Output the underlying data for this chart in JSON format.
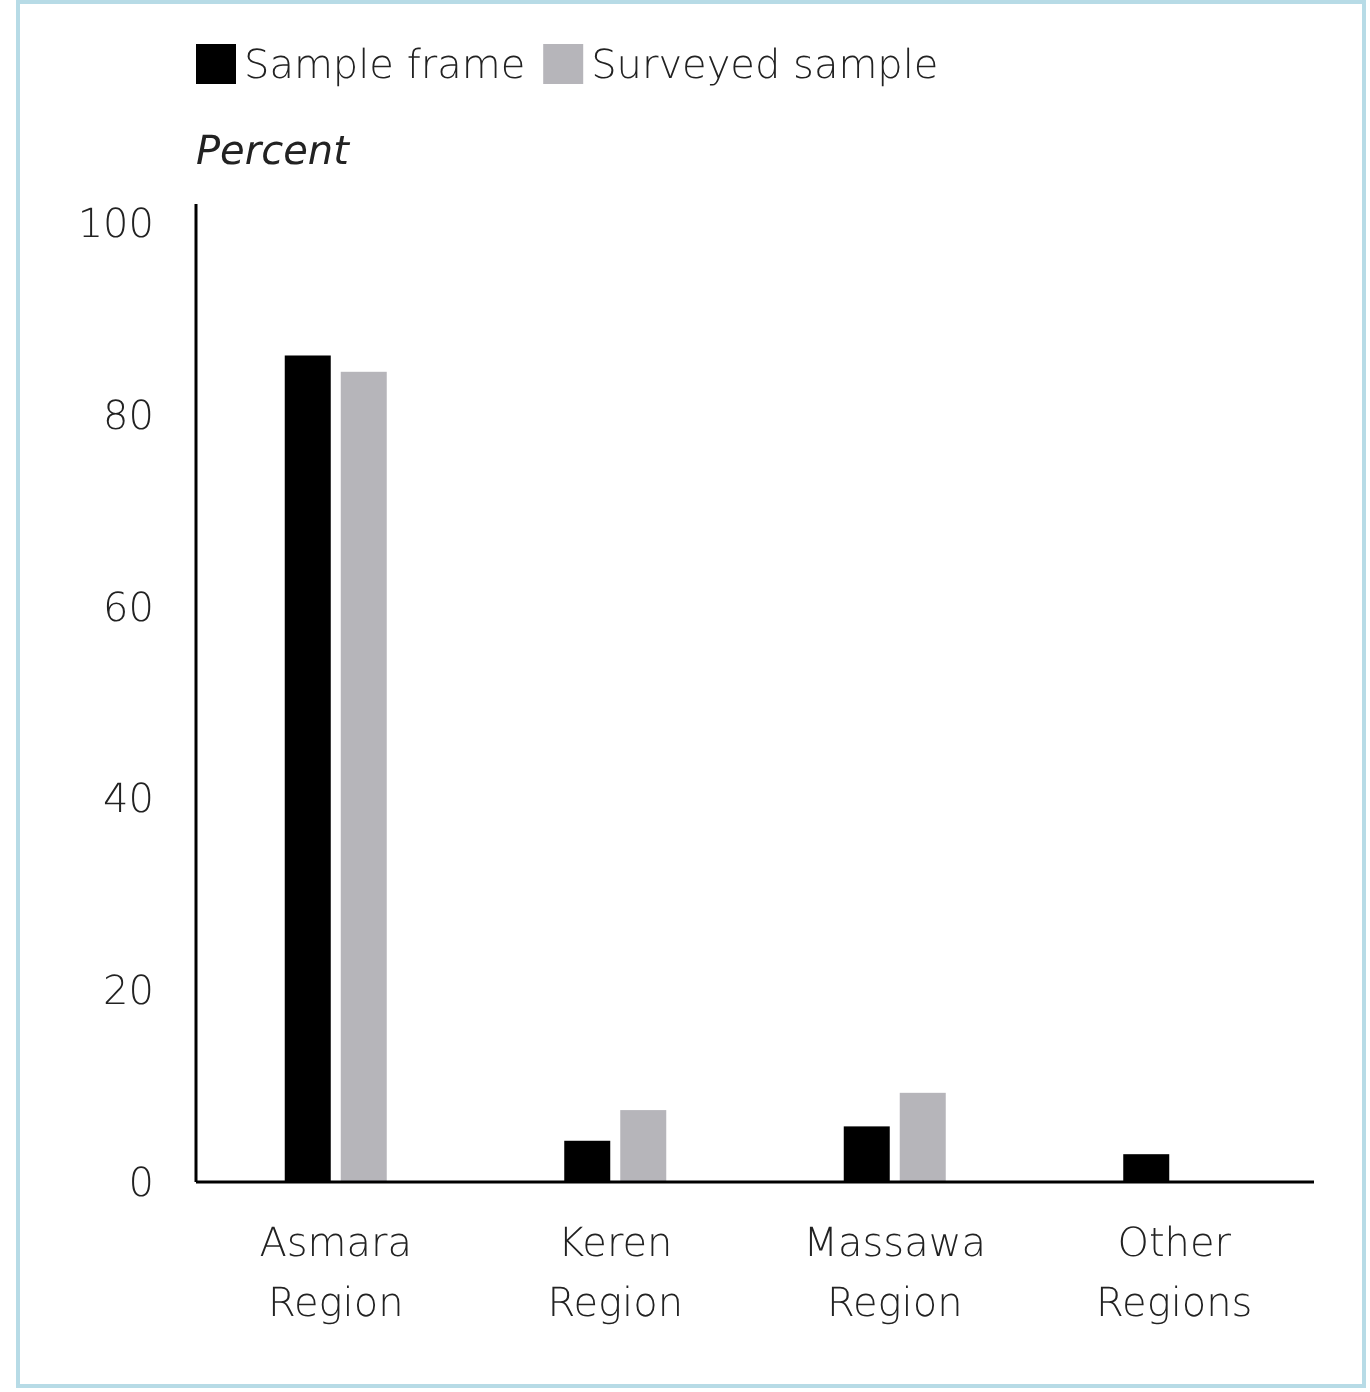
{
  "chart_data": {
    "type": "bar",
    "ylabel": "Percent",
    "categories": [
      "Asmara Region",
      "Keren Region",
      "Massawa Region",
      "Other Regions"
    ],
    "series": [
      {
        "name": "Sample frame",
        "color": "#000000",
        "values": [
          86.2,
          4.3,
          5.8,
          2.9
        ]
      },
      {
        "name": "Surveyed sample",
        "color": "#b6b5ba",
        "values": [
          84.5,
          7.5,
          9.3,
          null
        ]
      }
    ],
    "ylim": [
      0,
      102
    ],
    "yticks": [
      0,
      20,
      40,
      60,
      80,
      100
    ],
    "grid": false,
    "legend": "top left"
  }
}
